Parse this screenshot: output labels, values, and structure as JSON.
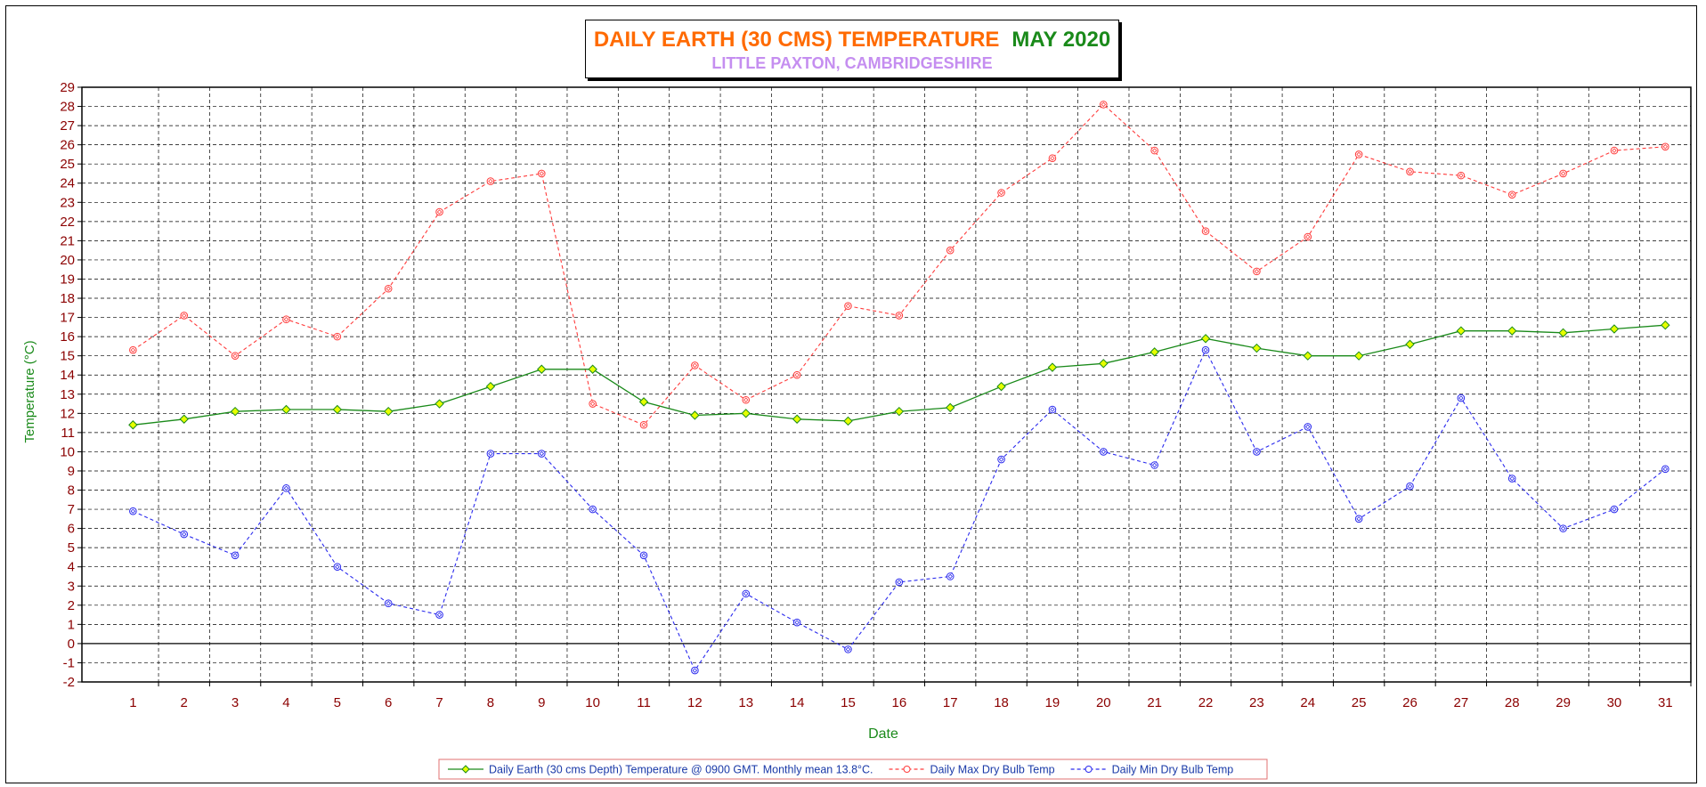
{
  "chart_data": {
    "type": "line",
    "title": "DAILY EARTH (30 CMS) TEMPERATURE",
    "title_period": "MAY 2020",
    "subtitle": "LITTLE PAXTON, CAMBRIDGESHIRE",
    "xlabel": "Date",
    "ylabel": "Temperature (°C)",
    "ylim": [
      -2,
      29
    ],
    "y_ticks": [
      -2,
      -1,
      0,
      1,
      2,
      3,
      4,
      5,
      6,
      7,
      8,
      9,
      10,
      11,
      12,
      13,
      14,
      15,
      16,
      17,
      18,
      19,
      20,
      21,
      22,
      23,
      24,
      25,
      26,
      27,
      28,
      29
    ],
    "x": [
      1,
      2,
      3,
      4,
      5,
      6,
      7,
      8,
      9,
      10,
      11,
      12,
      13,
      14,
      15,
      16,
      17,
      18,
      19,
      20,
      21,
      22,
      23,
      24,
      25,
      26,
      27,
      28,
      29,
      30,
      31
    ],
    "grid": true,
    "legend_position": "bottom",
    "series": [
      {
        "name": "Daily Earth (30 cms Depth) Temperature @ 0900 GMT. Monthly mean 13.8°C.",
        "color": "#1a8a1a",
        "marker_fill": "#e6ff00",
        "style": "solid",
        "values": [
          11.4,
          11.7,
          12.1,
          12.2,
          12.2,
          12.1,
          12.5,
          13.4,
          14.3,
          14.3,
          12.6,
          11.9,
          12.0,
          11.7,
          11.6,
          12.1,
          12.3,
          13.4,
          14.4,
          14.6,
          15.2,
          15.9,
          15.4,
          15.0,
          15.0,
          15.6,
          16.3,
          16.3,
          16.2,
          16.4,
          16.6
        ]
      },
      {
        "name": "Daily Max Dry Bulb Temp",
        "color": "#ff3b3b",
        "marker_fill": "#ffffff",
        "style": "dashed",
        "values": [
          15.3,
          17.1,
          15.0,
          16.9,
          16.0,
          18.5,
          22.5,
          24.1,
          24.5,
          12.5,
          11.4,
          14.5,
          12.7,
          14.0,
          17.6,
          17.1,
          20.5,
          23.5,
          25.3,
          28.1,
          25.7,
          21.5,
          19.4,
          21.2,
          25.5,
          24.6,
          24.4,
          23.4,
          24.5,
          25.7,
          25.9
        ]
      },
      {
        "name": "Daily Min Dry Bulb Temp",
        "color": "#2a2aee",
        "marker_fill": "#ffffff",
        "style": "dashed",
        "values": [
          6.9,
          5.7,
          4.6,
          8.1,
          4.0,
          2.1,
          1.5,
          9.9,
          9.9,
          7.0,
          4.6,
          -1.4,
          2.6,
          1.1,
          -0.3,
          3.2,
          3.5,
          9.6,
          12.2,
          10.0,
          9.3,
          15.3,
          10.0,
          11.3,
          6.5,
          8.2,
          12.8,
          8.6,
          6.0,
          7.0,
          9.1
        ]
      }
    ]
  }
}
